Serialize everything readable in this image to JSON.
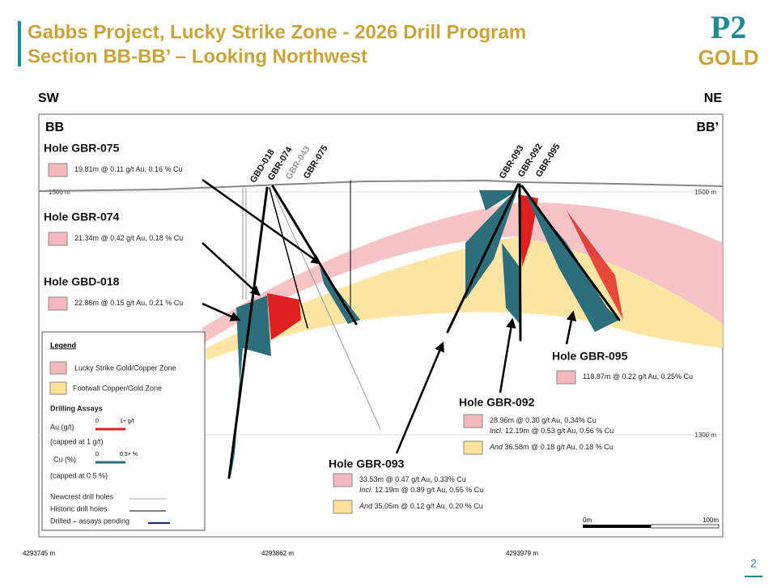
{
  "header": {
    "title_line1": "Gabbs Project, Lucky Strike Zone - 2026 Drill Program",
    "title_line2": "Section BB-BB’ – Looking Northwest"
  },
  "logo": {
    "p2": "P2",
    "gold": "GOLD"
  },
  "section": {
    "sw": "SW",
    "ne": "NE",
    "bb": "BB",
    "bb_prime": "BB’",
    "elev_left": "1500 m",
    "elev_right_top": "1500 m",
    "elev_right_bottom": "1300 m",
    "eastings": [
      "4293745 m",
      "4293862 m",
      "4293979 m"
    ],
    "scale_zero": "0m",
    "scale_end": "100m",
    "trace_labels": [
      "GBD-018",
      "GBR-074",
      "GBR-043",
      "GBR-075",
      "GBR-093",
      "GBR-092",
      "GBR-095"
    ]
  },
  "holes": [
    {
      "name": "Hole GBR-075",
      "intercepts": [
        {
          "text": "19.81m @  0.11 g/t Au, 0.16 % Cu"
        }
      ]
    },
    {
      "name": "Hole GBR-074",
      "intercepts": [
        {
          "text": "21.34m @  0.42 g/t Au, 0.18 % Cu"
        }
      ]
    },
    {
      "name": "Hole GBD-018",
      "intercepts": [
        {
          "text": "22.86m @  0.15 g/t Au, 0.21 % Cu"
        }
      ]
    },
    {
      "name": "Hole GBR-095",
      "intercepts": [
        {
          "text": "118.87m @  0.22 g/t Au, 0.25% Cu"
        }
      ]
    },
    {
      "name": "Hole GBR-092",
      "intercepts": [
        {
          "text": "28.96m @  0.30 g/t Au, 0.34% Cu"
        },
        {
          "prefix": "Incl.",
          "text": "12.19m @ 0.53 g/t Au, 0.56 % Cu"
        },
        {
          "prefix": "And",
          "text": "36.58m @  0.18 g/t Au, 0.18 % Cu"
        }
      ]
    },
    {
      "name": "Hole GBR-093",
      "intercepts": [
        {
          "text": "33.53m @  0.47 g/t Au, 0.33% Cu"
        },
        {
          "prefix": "Incl.",
          "text": "12.19m @ 0.89 g/t Au, 0.55 % Cu"
        },
        {
          "prefix": "And",
          "text": "35.05m @  0.12 g/t Au, 0.20 % Cu"
        }
      ]
    }
  ],
  "legend": {
    "title": "Legend",
    "zone_gold_copper": "Lucky Strike Gold/Copper Zone",
    "zone_footwall": "Footwall Copper/Gold Zone",
    "assays_title": "Drilling Assays",
    "au_label": "Au (g/t)",
    "au_min": "0",
    "au_max": "1+ g/t",
    "au_cap": "(capped at 1 g/t)",
    "cu_label": "Cu (%)",
    "cu_min": "0",
    "cu_max": "0.5+ %",
    "cu_cap": "(capped at 0.5 %)",
    "newcrest": "Newcrest drill holes",
    "historic": "Historic drill holes",
    "pending": "Drilled – assays pending"
  },
  "page_number": "2"
}
